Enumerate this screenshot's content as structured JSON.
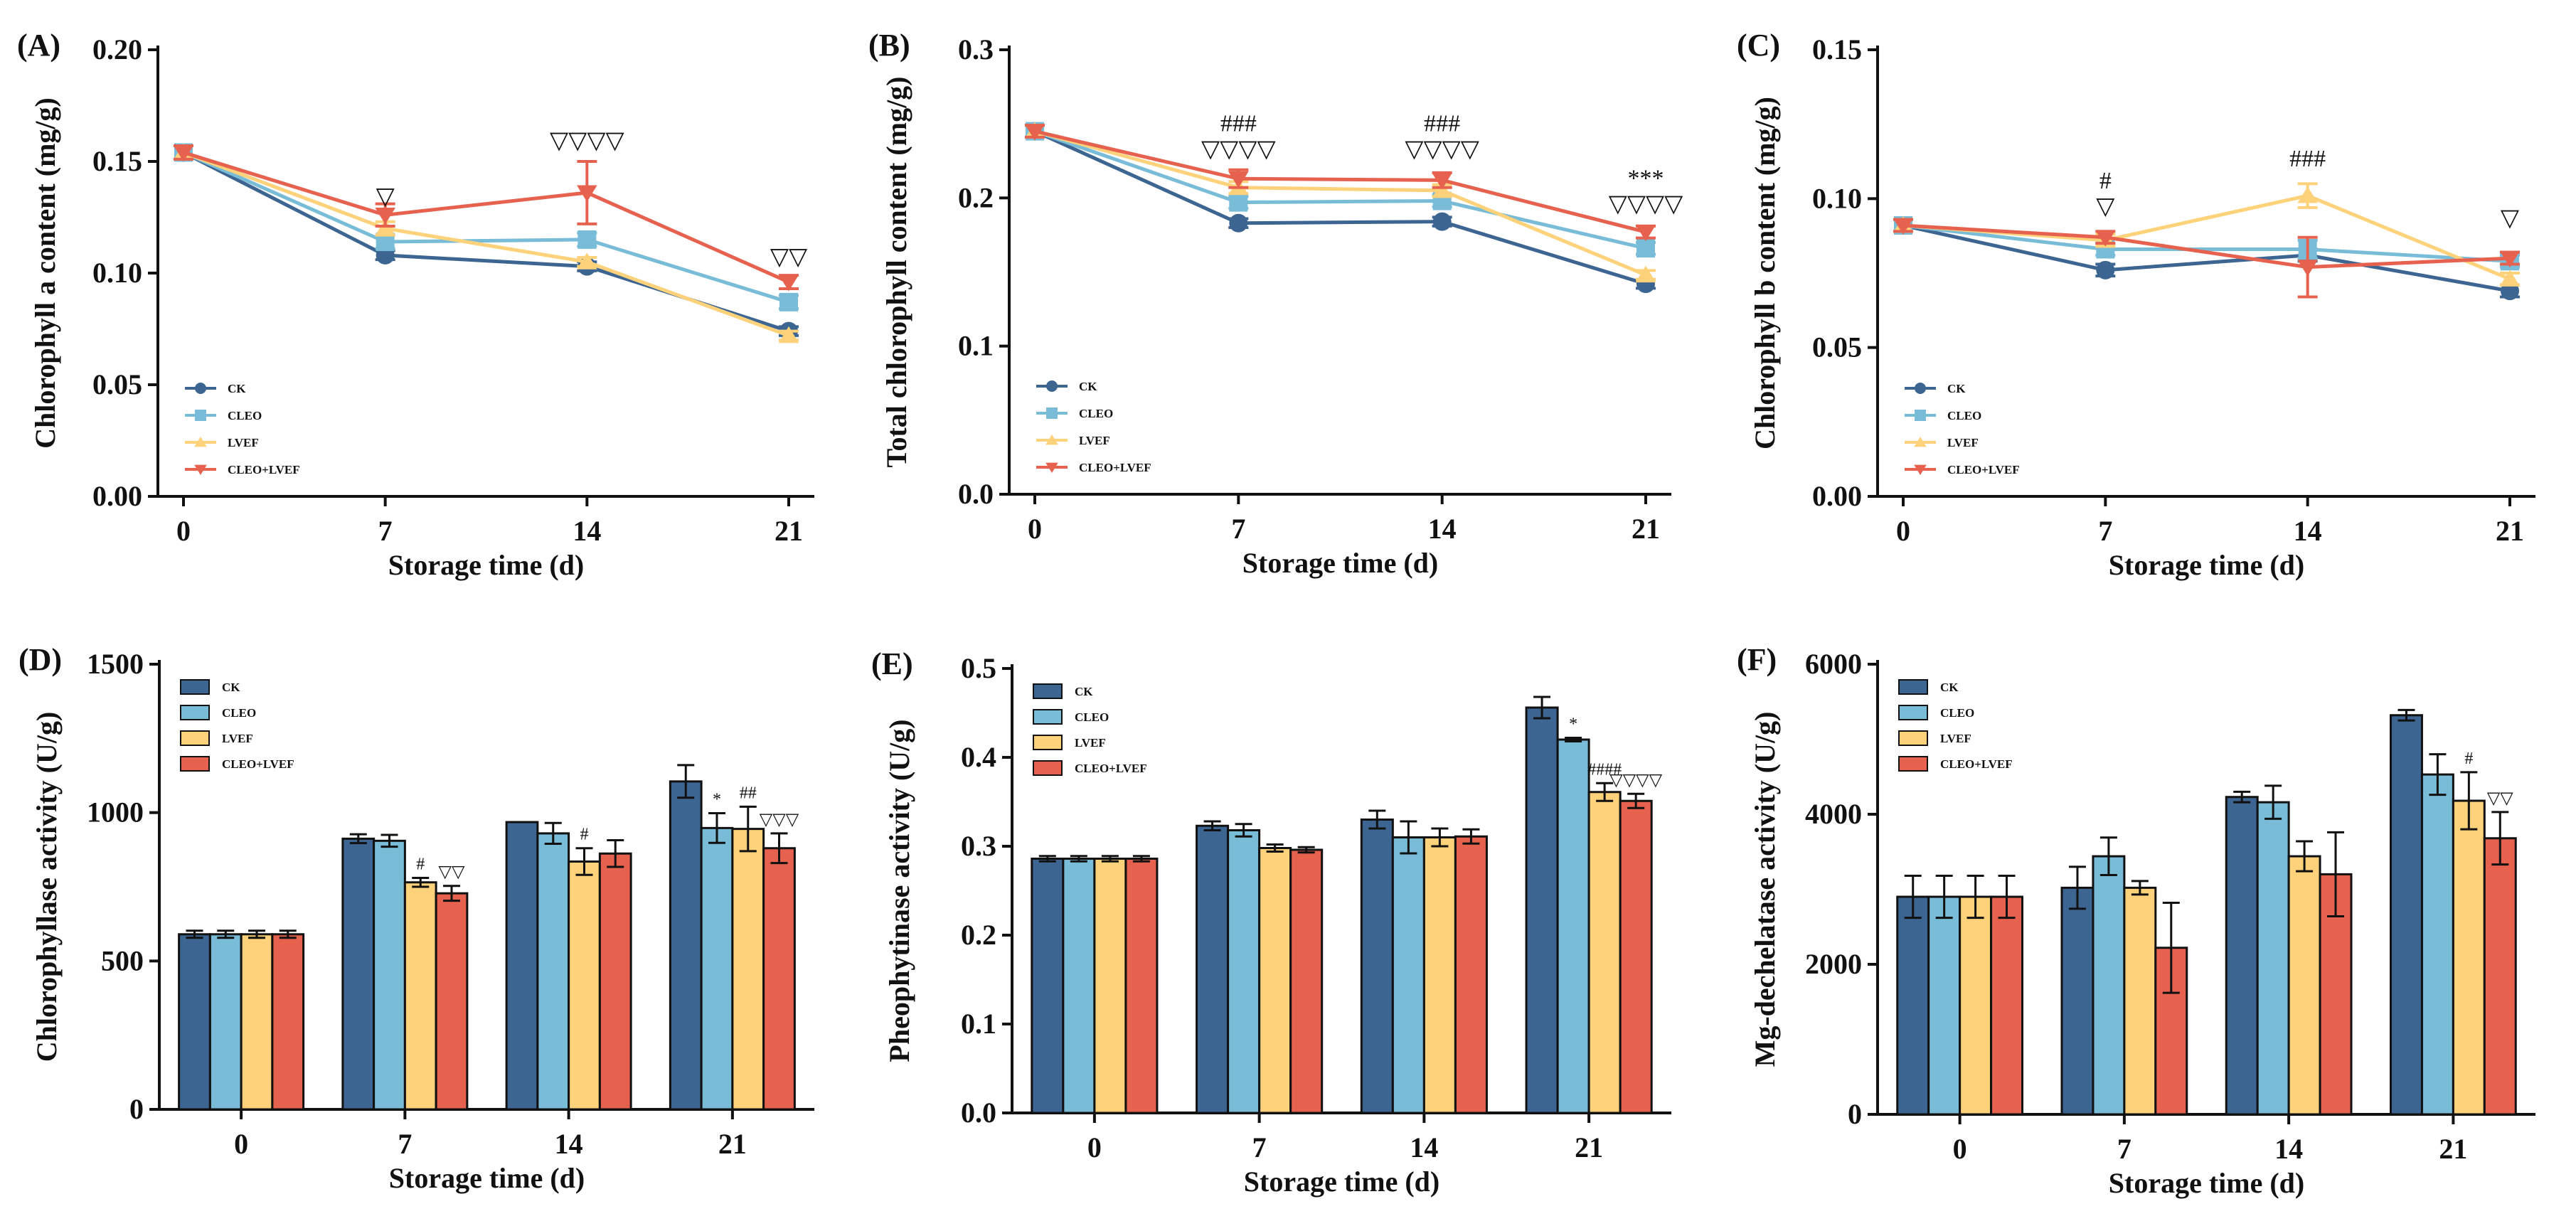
{
  "figure": {
    "colors": {
      "CK": "#3d6592",
      "CLEO": "#78bcd8",
      "LVEF": "#fdd27a",
      "CLEO+LVEF": "#e6624f"
    },
    "marker_icons": {
      "CK": "circle-icon",
      "CLEO": "square-icon",
      "LVEF": "triangle-up-icon",
      "CLEO+LVEF": "triangle-down-icon"
    }
  },
  "chart_data": [
    {
      "panel": "(A)",
      "type": "line",
      "title": "",
      "xlabel": "Storage time (d)",
      "ylabel": "Chlorophyll a content (mg/g)",
      "ylim": [
        0,
        0.2
      ],
      "yticks": [
        "0.00",
        "0.05",
        "0.10",
        "0.15",
        "0.20"
      ],
      "categories": [
        "0",
        "7",
        "14",
        "21"
      ],
      "grid": false,
      "legend_position": "bottom-left",
      "series": [
        {
          "name": "CK",
          "values": [
            0.154,
            0.108,
            0.103,
            0.074
          ],
          "errors": [
            0.003,
            0.002,
            0.002,
            0.002
          ]
        },
        {
          "name": "CLEO",
          "values": [
            0.154,
            0.114,
            0.115,
            0.087
          ],
          "errors": [
            0.003,
            0.003,
            0.003,
            0.003
          ]
        },
        {
          "name": "LVEF",
          "values": [
            0.154,
            0.12,
            0.105,
            0.072
          ],
          "errors": [
            0.003,
            0.003,
            0.002,
            0.002
          ]
        },
        {
          "name": "CLEO+LVEF",
          "values": [
            0.154,
            0.126,
            0.136,
            0.096
          ],
          "errors": [
            0.003,
            0.005,
            0.014,
            0.003
          ]
        }
      ],
      "annotations": [
        {
          "x": "7",
          "lines": [
            "▽"
          ],
          "y": 0.127
        },
        {
          "x": "14",
          "lines": [
            "▽▽▽▽"
          ],
          "y": 0.152
        },
        {
          "x": "21",
          "lines": [
            "▽▽"
          ],
          "y": 0.1
        }
      ]
    },
    {
      "panel": "(B)",
      "type": "line",
      "title": "",
      "xlabel": "Storage time (d)",
      "ylabel": "Total chlorophyll content (mg/g)",
      "ylim": [
        0,
        0.3
      ],
      "yticks": [
        "0.0",
        "0.1",
        "0.2",
        "0.3"
      ],
      "categories": [
        "0",
        "7",
        "14",
        "21"
      ],
      "grid": false,
      "legend_position": "bottom-left",
      "series": [
        {
          "name": "CK",
          "values": [
            0.245,
            0.183,
            0.184,
            0.142
          ],
          "errors": [
            0.004,
            0.003,
            0.003,
            0.003
          ]
        },
        {
          "name": "CLEO",
          "values": [
            0.245,
            0.197,
            0.198,
            0.166
          ],
          "errors": [
            0.004,
            0.004,
            0.004,
            0.004
          ]
        },
        {
          "name": "LVEF",
          "values": [
            0.245,
            0.207,
            0.205,
            0.148
          ],
          "errors": [
            0.004,
            0.004,
            0.004,
            0.003
          ]
        },
        {
          "name": "CLEO+LVEF",
          "values": [
            0.245,
            0.213,
            0.212,
            0.177
          ],
          "errors": [
            0.004,
            0.006,
            0.005,
            0.004
          ]
        }
      ],
      "annotations": [
        {
          "x": "7",
          "lines": [
            "###",
            "▽▽▽▽"
          ],
          "y": 0.222
        },
        {
          "x": "14",
          "lines": [
            "###",
            "▽▽▽▽"
          ],
          "y": 0.222
        },
        {
          "x": "21",
          "lines": [
            "***",
            "▽▽▽▽"
          ],
          "y": 0.185
        }
      ]
    },
    {
      "panel": "(C)",
      "type": "line",
      "title": "",
      "xlabel": "Storage time (d)",
      "ylabel": "Chlorophyll b content (mg/g)",
      "ylim": [
        0,
        0.15
      ],
      "yticks": [
        "0.00",
        "0.05",
        "0.10",
        "0.15"
      ],
      "categories": [
        "0",
        "7",
        "14",
        "21"
      ],
      "grid": false,
      "legend_position": "bottom-left",
      "series": [
        {
          "name": "CK",
          "values": [
            0.091,
            0.076,
            0.081,
            0.069
          ],
          "errors": [
            0.002,
            0.002,
            0.002,
            0.002
          ]
        },
        {
          "name": "CLEO",
          "values": [
            0.091,
            0.083,
            0.083,
            0.079
          ],
          "errors": [
            0.002,
            0.002,
            0.003,
            0.002
          ]
        },
        {
          "name": "LVEF",
          "values": [
            0.091,
            0.086,
            0.101,
            0.073
          ],
          "errors": [
            0.002,
            0.002,
            0.004,
            0.002
          ]
        },
        {
          "name": "CLEO+LVEF",
          "values": [
            0.091,
            0.087,
            0.077,
            0.08
          ],
          "errors": [
            0.002,
            0.002,
            0.01,
            0.002
          ]
        }
      ],
      "annotations": [
        {
          "x": "7",
          "lines": [
            "#",
            "▽"
          ],
          "y": 0.092
        },
        {
          "x": "14",
          "lines": [
            "###"
          ],
          "y": 0.108
        },
        {
          "x": "21",
          "lines": [
            "▽"
          ],
          "y": 0.088
        }
      ]
    },
    {
      "panel": "(D)",
      "type": "bar",
      "title": "",
      "xlabel": "Storage time (d)",
      "ylabel": "Chlorophyllase activity (U/g)",
      "ylim": [
        0,
        1500
      ],
      "yticks": [
        "0",
        "500",
        "1000",
        "1500"
      ],
      "categories": [
        "0",
        "7",
        "14",
        "21"
      ],
      "grid": false,
      "legend_position": "top-left",
      "series": [
        {
          "name": "CK",
          "values": [
            590,
            912,
            968,
            1105
          ],
          "errors": [
            12,
            15,
            0,
            55
          ]
        },
        {
          "name": "CLEO",
          "values": [
            590,
            905,
            930,
            948
          ],
          "errors": [
            12,
            20,
            35,
            50
          ]
        },
        {
          "name": "LVEF",
          "values": [
            590,
            765,
            835,
            945
          ],
          "errors": [
            12,
            15,
            45,
            75
          ]
        },
        {
          "name": "CLEO+LVEF",
          "values": [
            590,
            728,
            862,
            880
          ],
          "errors": [
            12,
            25,
            45,
            50
          ]
        }
      ],
      "annotations": [
        {
          "x": "7",
          "series": "LVEF",
          "text": "#"
        },
        {
          "x": "7",
          "series": "CLEO+LVEF",
          "text": "▽▽"
        },
        {
          "x": "14",
          "series": "LVEF",
          "text": "#"
        },
        {
          "x": "21",
          "series": "CLEO",
          "text": "*"
        },
        {
          "x": "21",
          "series": "LVEF",
          "text": "##"
        },
        {
          "x": "21",
          "series": "CLEO+LVEF",
          "text": "▽▽▽"
        }
      ]
    },
    {
      "panel": "(E)",
      "type": "bar",
      "title": "",
      "xlabel": "Storage time (d)",
      "ylabel": "Pheophytinase activity (U/g)",
      "ylim": [
        0,
        0.5
      ],
      "yticks": [
        "0.0",
        "0.1",
        "0.2",
        "0.3",
        "0.4",
        "0.5"
      ],
      "categories": [
        "0",
        "7",
        "14",
        "21"
      ],
      "grid": false,
      "legend_position": "top-left",
      "series": [
        {
          "name": "CK",
          "values": [
            0.286,
            0.323,
            0.33,
            0.456
          ],
          "errors": [
            0.003,
            0.005,
            0.01,
            0.012
          ]
        },
        {
          "name": "CLEO",
          "values": [
            0.286,
            0.318,
            0.31,
            0.42
          ],
          "errors": [
            0.003,
            0.007,
            0.018,
            0.002
          ]
        },
        {
          "name": "LVEF",
          "values": [
            0.286,
            0.298,
            0.31,
            0.361
          ],
          "errors": [
            0.003,
            0.004,
            0.01,
            0.01
          ]
        },
        {
          "name": "CLEO+LVEF",
          "values": [
            0.286,
            0.296,
            0.311,
            0.351
          ],
          "errors": [
            0.003,
            0.003,
            0.008,
            0.008
          ]
        }
      ],
      "annotations": [
        {
          "x": "21",
          "series": "CLEO",
          "text": "*"
        },
        {
          "x": "21",
          "series": "LVEF",
          "text": "####"
        },
        {
          "x": "21",
          "series": "CLEO+LVEF",
          "text": "▽▽▽▽"
        }
      ]
    },
    {
      "panel": "(F)",
      "type": "bar",
      "title": "",
      "xlabel": "Storage time (d)",
      "ylabel": "Mg-dechelatase activity (U/g)",
      "ylim": [
        0,
        6000
      ],
      "yticks": [
        "0",
        "2000",
        "4000",
        "6000"
      ],
      "categories": [
        "0",
        "7",
        "14",
        "21"
      ],
      "grid": false,
      "legend_position": "top-left",
      "series": [
        {
          "name": "CK",
          "values": [
            2900,
            3020,
            4230,
            5320
          ],
          "errors": [
            280,
            280,
            70,
            70
          ]
        },
        {
          "name": "CLEO",
          "values": [
            2900,
            3440,
            4160,
            4530
          ],
          "errors": [
            280,
            250,
            220,
            270
          ]
        },
        {
          "name": "LVEF",
          "values": [
            2900,
            3020,
            3440,
            4180
          ],
          "errors": [
            280,
            90,
            200,
            380
          ]
        },
        {
          "name": "CLEO+LVEF",
          "values": [
            2900,
            2220,
            3200,
            3680
          ],
          "errors": [
            280,
            600,
            560,
            350
          ]
        }
      ],
      "annotations": [
        {
          "x": "21",
          "series": "LVEF",
          "text": "#"
        },
        {
          "x": "21",
          "series": "CLEO+LVEF",
          "text": "▽▽"
        }
      ]
    }
  ]
}
